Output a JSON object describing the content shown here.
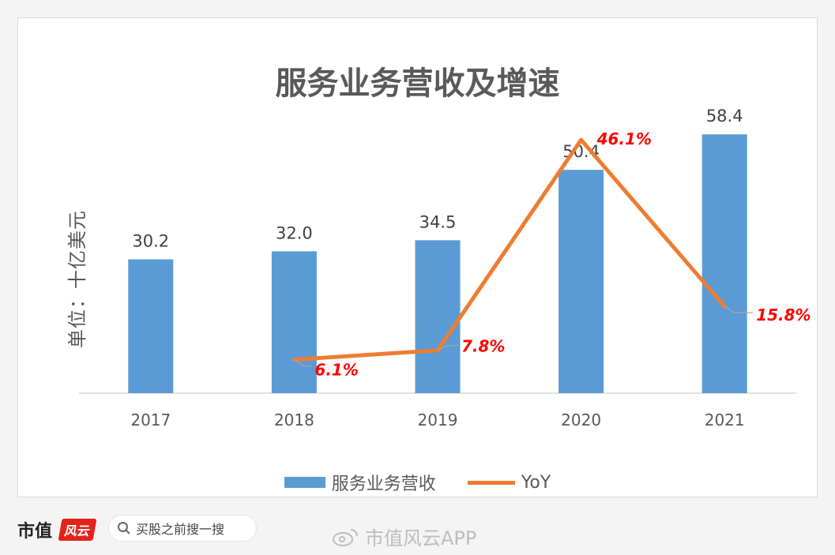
{
  "chart_data": {
    "type": "bar",
    "title": "服务业务营收及增速",
    "ylabel": "单位：十亿美元",
    "categories": [
      "2017",
      "2018",
      "2019",
      "2020",
      "2021"
    ],
    "series": [
      {
        "name": "服务业务营收",
        "type": "bar",
        "values": [
          30.2,
          32.0,
          34.5,
          50.4,
          58.4
        ],
        "labels": [
          "30.2",
          "32.0",
          "34.5",
          "50.4",
          "58.4"
        ],
        "color": "#5b9bd5"
      },
      {
        "name": "YoY",
        "type": "line",
        "values": [
          null,
          6.1,
          7.8,
          46.1,
          15.8
        ],
        "labels": [
          "",
          "6.1%",
          "7.8%",
          "46.1%",
          "15.8%"
        ],
        "color": "#ed7d31",
        "label_color": "#ff0000"
      }
    ],
    "bar_ylim": [
      0,
      62
    ],
    "line_ylim": [
      0,
      50
    ],
    "grid": false,
    "legend": "bottom"
  },
  "footer": {
    "brand": "市值",
    "brand_logo": "风云",
    "search_placeholder": "买股之前搜一搜",
    "weibo_handle": "市值风云APP"
  }
}
